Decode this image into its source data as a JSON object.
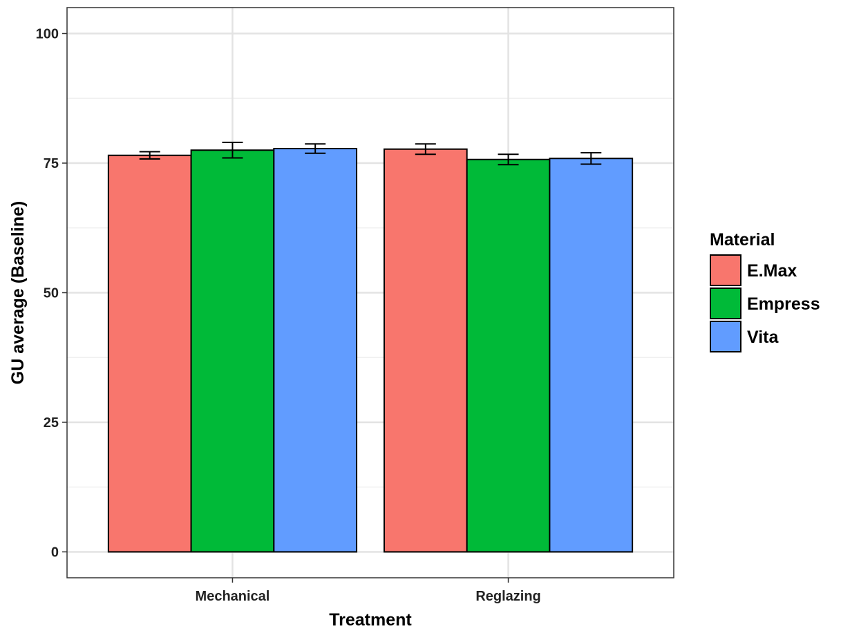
{
  "chart_data": {
    "type": "bar",
    "title": "",
    "xlabel": "Treatment",
    "ylabel": "GU average (Baseline)",
    "categories": [
      "Mechanical",
      "Reglazing"
    ],
    "ylim": [
      -5,
      105
    ],
    "yticks": [
      0,
      25,
      50,
      75,
      100
    ],
    "grid": true,
    "legend": {
      "title": "Material",
      "placement": "right"
    },
    "series": [
      {
        "name": "E.Max",
        "color": "#F8766D",
        "values": [
          76.5,
          77.7
        ],
        "error": [
          0.7,
          1.0
        ]
      },
      {
        "name": "Empress",
        "color": "#00BA38",
        "values": [
          77.5,
          75.7
        ],
        "error": [
          1.5,
          1.0
        ]
      },
      {
        "name": "Vita",
        "color": "#619CFF",
        "values": [
          77.8,
          75.9
        ],
        "error": [
          0.9,
          1.1
        ]
      }
    ]
  }
}
